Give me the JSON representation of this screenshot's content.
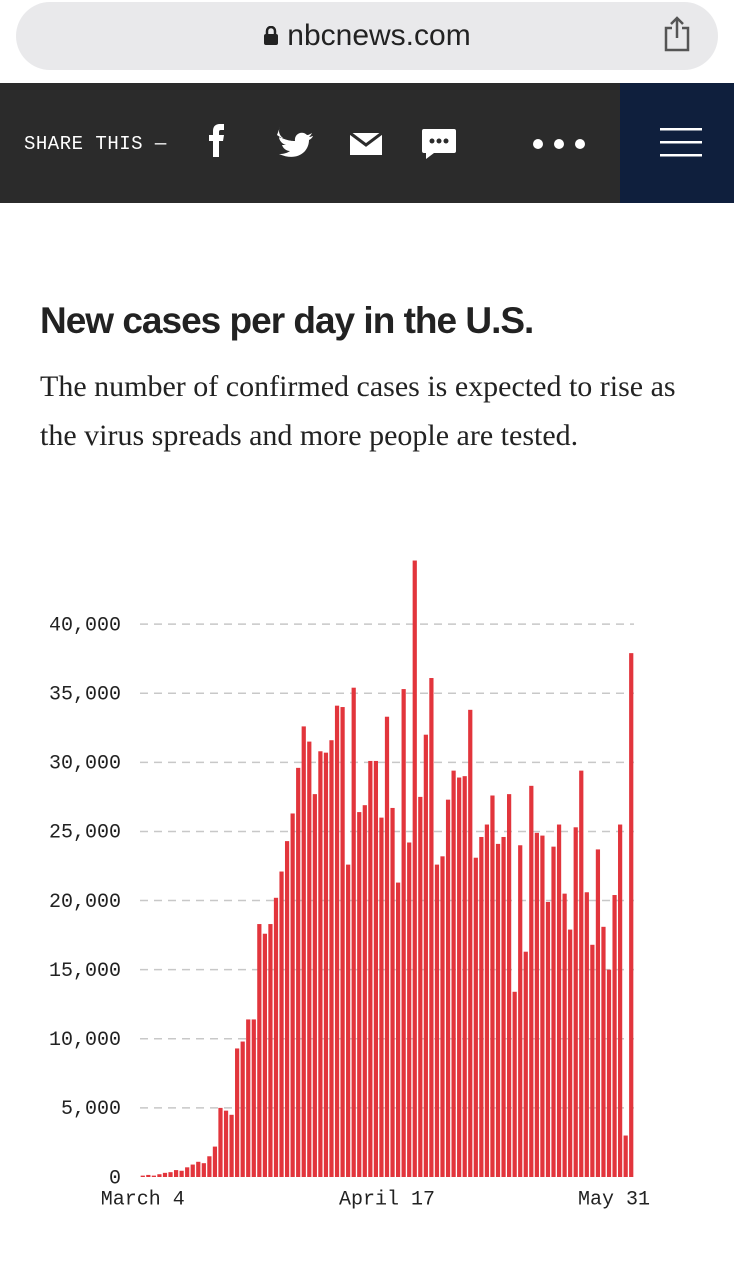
{
  "browser": {
    "url": "nbcnews.com"
  },
  "share_bar": {
    "label": "SHARE THIS —"
  },
  "chart_data": {
    "type": "bar",
    "title": "New cases per day in the U.S.",
    "subtitle": "The number of confirmed cases is expected to rise as the virus spreads and more people are tested.",
    "color": "#e2353c",
    "grid": true,
    "categories": [
      "March 4",
      null,
      null,
      null,
      null,
      null,
      null,
      null,
      null,
      null,
      null,
      null,
      null,
      null,
      null,
      null,
      null,
      null,
      null,
      null,
      null,
      null,
      null,
      null,
      null,
      null,
      null,
      null,
      null,
      null,
      null,
      null,
      null,
      null,
      null,
      null,
      null,
      null,
      null,
      null,
      null,
      null,
      null,
      null,
      "April 17",
      null,
      null,
      null,
      null,
      null,
      null,
      null,
      null,
      null,
      null,
      null,
      null,
      null,
      null,
      null,
      null,
      null,
      null,
      null,
      null,
      null,
      null,
      null,
      null,
      null,
      null,
      null,
      null,
      null,
      null,
      null,
      null,
      null,
      null,
      null,
      null,
      null,
      null,
      null,
      null,
      null,
      null,
      null,
      "May 31"
    ],
    "values": [
      100,
      150,
      100,
      200,
      300,
      350,
      500,
      450,
      700,
      900,
      1100,
      1000,
      1500,
      2200,
      5000,
      4800,
      4500,
      9300,
      9800,
      11400,
      11400,
      18300,
      17600,
      18300,
      20200,
      22100,
      24300,
      26300,
      29600,
      32600,
      31500,
      27700,
      30800,
      30700,
      31600,
      34100,
      34000,
      22600,
      35400,
      26400,
      26900,
      30100,
      30100,
      26000,
      33300,
      26700,
      21300,
      35300,
      24200,
      44600,
      27500,
      32000,
      36100,
      22600,
      23200,
      27300,
      29400,
      28900,
      29000,
      33800,
      23100,
      24600,
      25500,
      27600,
      24100,
      24600,
      27700,
      13400,
      24000,
      16300,
      28300,
      24900,
      24700,
      19900,
      23900,
      25500,
      20500,
      17900,
      25300,
      29400,
      20600,
      16800,
      23700,
      18100,
      15000,
      20400,
      25500,
      3000,
      37900
    ],
    "ylim": [
      0,
      45000
    ],
    "yticks": [
      0,
      {
        "value": 5000,
        "label": "5,000"
      },
      {
        "value": 10000,
        "label": "10,000"
      },
      {
        "value": 15000,
        "label": "15,000"
      },
      {
        "value": 20000,
        "label": "20,000"
      },
      {
        "value": 25000,
        "label": "25,000"
      },
      {
        "value": 30000,
        "label": "30,000"
      },
      {
        "value": 35000,
        "label": "35,000"
      },
      {
        "value": 40000,
        "label": "40,000"
      }
    ]
  }
}
